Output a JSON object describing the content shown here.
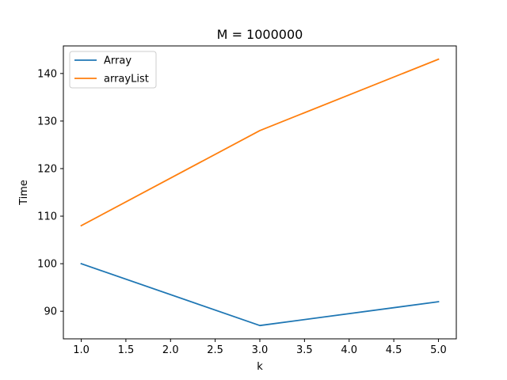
{
  "chart_data": {
    "type": "line",
    "title": "M = 1000000",
    "xlabel": "k",
    "ylabel": "Time",
    "x": [
      1,
      3,
      5
    ],
    "xlim": [
      0.8,
      5.2
    ],
    "ylim": [
      84.2,
      145.8
    ],
    "xticks": [
      1.0,
      1.5,
      2.0,
      2.5,
      3.0,
      3.5,
      4.0,
      4.5,
      5.0
    ],
    "xtick_labels": [
      "1.0",
      "1.5",
      "2.0",
      "2.5",
      "3.0",
      "3.5",
      "4.0",
      "4.5",
      "5.0"
    ],
    "yticks": [
      90,
      100,
      110,
      120,
      130,
      140
    ],
    "ytick_labels": [
      "90",
      "100",
      "110",
      "120",
      "130",
      "140"
    ],
    "grid": false,
    "legend_position": "top-left",
    "series": [
      {
        "name": "Array",
        "color": "#1f77b4",
        "values": [
          100,
          87,
          92
        ]
      },
      {
        "name": "arrayList",
        "color": "#ff7f0e",
        "values": [
          108,
          128,
          143
        ]
      }
    ]
  }
}
